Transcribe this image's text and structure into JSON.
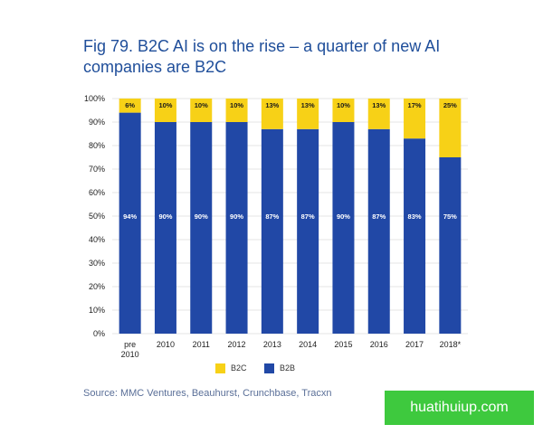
{
  "title": "Fig 79. B2C AI is on the rise – a quarter of new AI companies are B2C",
  "source": "Source: MMC Ventures, Beauhurst, Crunchbase, Tracxn",
  "watermark": "huatihuiup.com",
  "colors": {
    "b2b": "#2148a6",
    "b2c": "#f7d117",
    "axis_text": "#222222",
    "grid": "#e4e4e4"
  },
  "legend": [
    {
      "label": "B2C",
      "color": "#f7d117"
    },
    {
      "label": "B2B",
      "color": "#2148a6"
    }
  ],
  "chart_data": {
    "type": "bar",
    "stacked": true,
    "categories": [
      "pre 2010",
      "2010",
      "2011",
      "2012",
      "2013",
      "2014",
      "2015",
      "2016",
      "2017",
      "2018*"
    ],
    "series": [
      {
        "name": "B2B",
        "values": [
          94,
          90,
          90,
          90,
          87,
          87,
          90,
          87,
          83,
          75
        ],
        "labels": [
          "94%",
          "90%",
          "90%",
          "90%",
          "87%",
          "87%",
          "90%",
          "87%",
          "83%",
          "75%"
        ]
      },
      {
        "name": "B2C",
        "values": [
          6,
          10,
          10,
          10,
          13,
          13,
          10,
          13,
          17,
          25
        ],
        "labels": [
          "6%",
          "10%",
          "10%",
          "10%",
          "13%",
          "13%",
          "10%",
          "13%",
          "17%",
          "25%"
        ]
      }
    ],
    "ylim": [
      0,
      100
    ],
    "yticks": [
      "0%",
      "10%",
      "20%",
      "30%",
      "40%",
      "50%",
      "60%",
      "70%",
      "80%",
      "90%",
      "100%"
    ],
    "grid": true,
    "legend_position": "bottom"
  }
}
